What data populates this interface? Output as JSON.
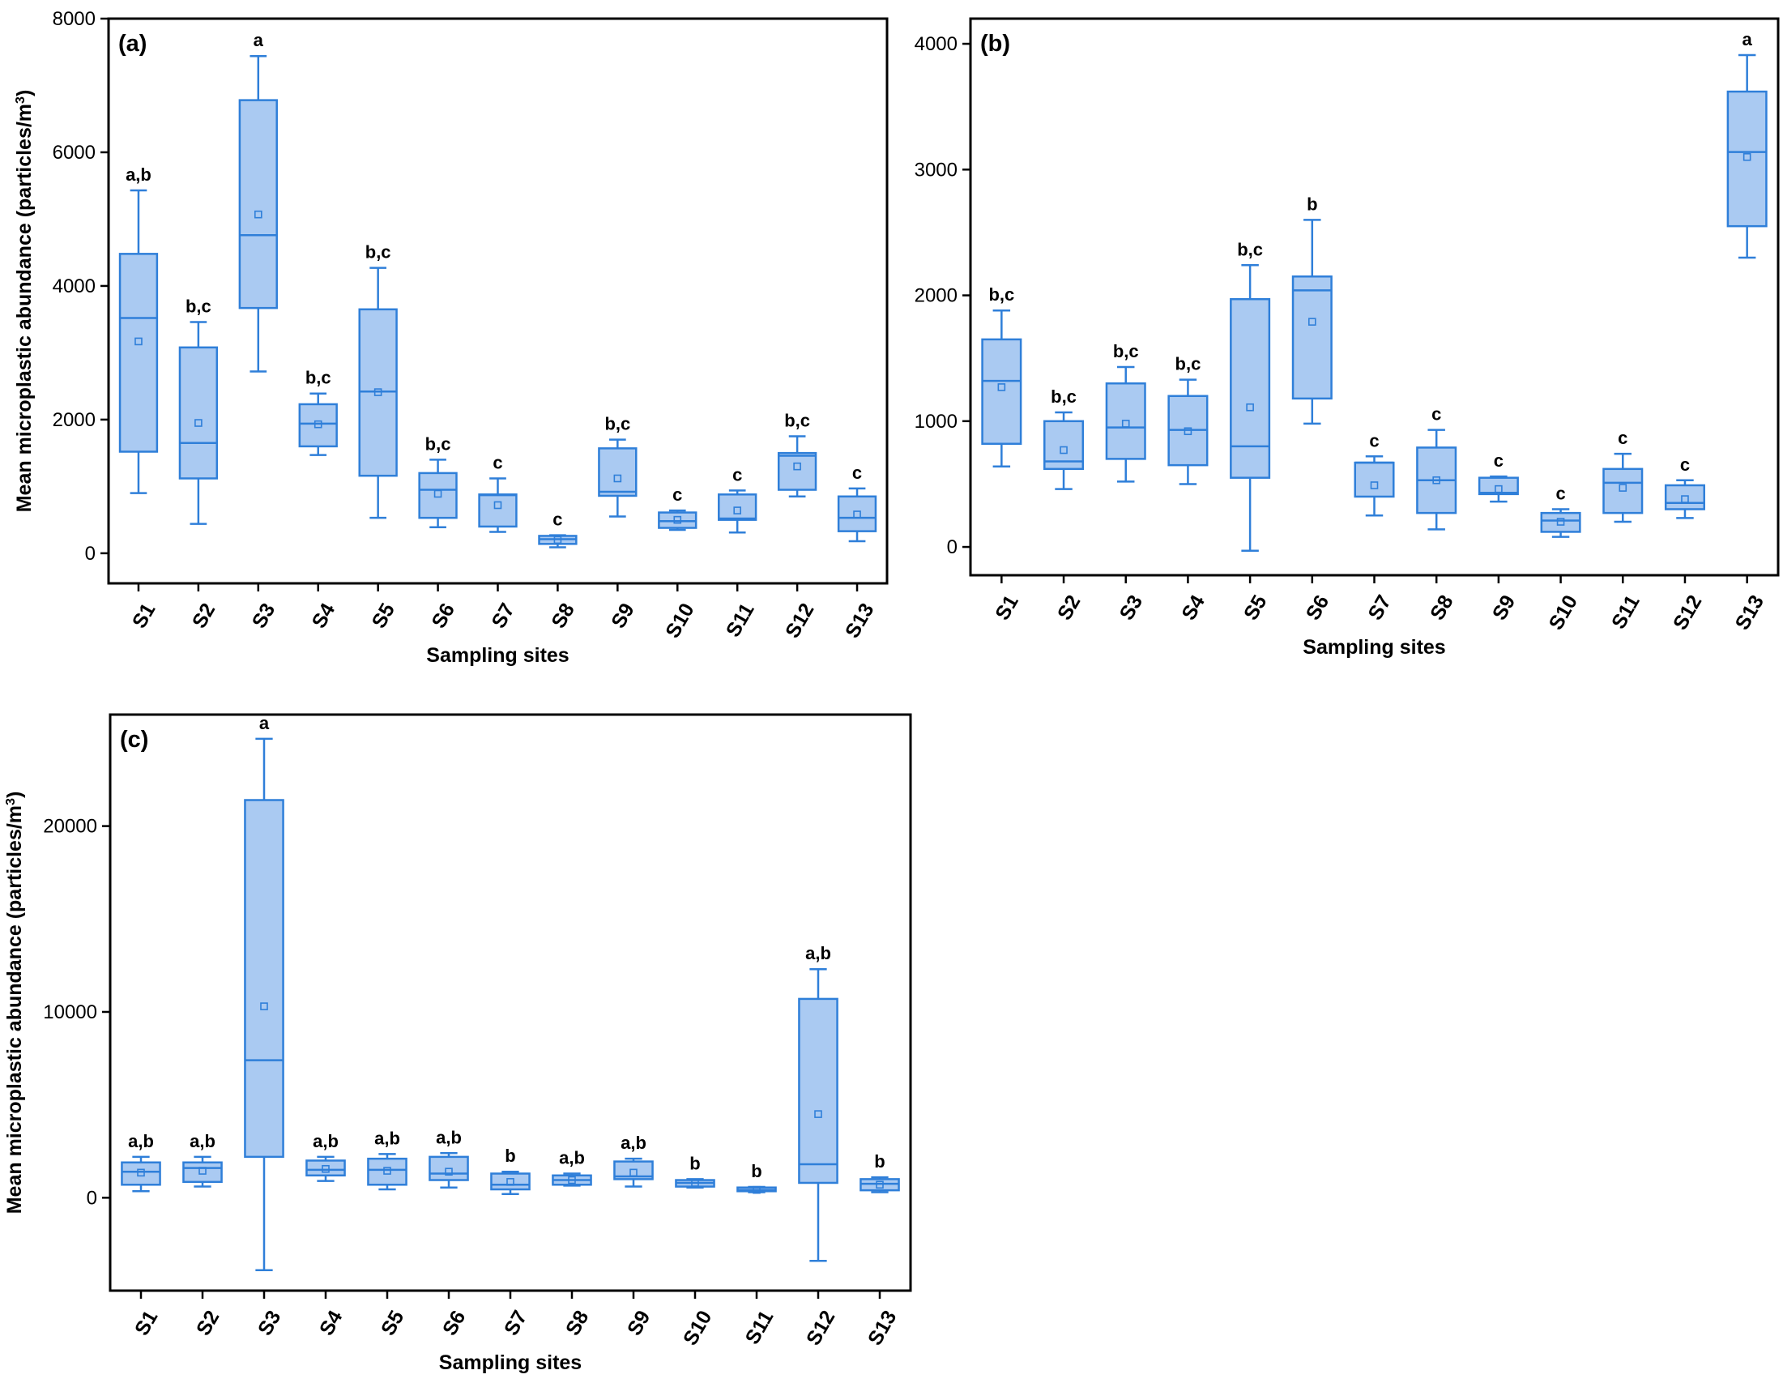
{
  "figure": {
    "box_color": "#2f7fd9",
    "box_fill": "#aacaf2",
    "axis_color": "#000000"
  },
  "chart_data": [
    {
      "type": "box",
      "panel": "(a)",
      "title": "",
      "xlabel": "Sampling sites",
      "ylabel": "Mean microplastic abundance (particles/m",
      "ylabel_sup": "3",
      "ylabel_tail": ")",
      "ylim": [
        -450,
        8000
      ],
      "yticks": [
        0,
        2000,
        4000,
        6000,
        8000
      ],
      "categories": [
        "S1",
        "S2",
        "S3",
        "S4",
        "S5",
        "S6",
        "S7",
        "S8",
        "S9",
        "S10",
        "S11",
        "S12",
        "S13"
      ],
      "boxes": [
        {
          "whisker_low": 900,
          "q1": 1520,
          "median": 3520,
          "q3": 4480,
          "whisker_high": 5430,
          "mean": 3170,
          "label": "a,b"
        },
        {
          "whisker_low": 440,
          "q1": 1120,
          "median": 1650,
          "q3": 3080,
          "whisker_high": 3460,
          "mean": 1950,
          "label": "b,c"
        },
        {
          "whisker_low": 2720,
          "q1": 3670,
          "median": 4760,
          "q3": 6780,
          "whisker_high": 7440,
          "mean": 5070,
          "label": "a"
        },
        {
          "whisker_low": 1470,
          "q1": 1600,
          "median": 1940,
          "q3": 2230,
          "whisker_high": 2390,
          "mean": 1930,
          "label": "b,c"
        },
        {
          "whisker_low": 530,
          "q1": 1160,
          "median": 2420,
          "q3": 3650,
          "whisker_high": 4270,
          "mean": 2410,
          "label": "b,c"
        },
        {
          "whisker_low": 390,
          "q1": 530,
          "median": 950,
          "q3": 1200,
          "whisker_high": 1400,
          "mean": 890,
          "label": "b,c"
        },
        {
          "whisker_low": 320,
          "q1": 400,
          "median": 870,
          "q3": 880,
          "whisker_high": 1120,
          "mean": 720,
          "label": "c"
        },
        {
          "whisker_low": 90,
          "q1": 140,
          "median": 210,
          "q3": 260,
          "whisker_high": 270,
          "mean": 200,
          "label": "c"
        },
        {
          "whisker_low": 550,
          "q1": 860,
          "median": 920,
          "q3": 1570,
          "whisker_high": 1700,
          "mean": 1120,
          "label": "b,c"
        },
        {
          "whisker_low": 350,
          "q1": 380,
          "median": 480,
          "q3": 610,
          "whisker_high": 640,
          "mean": 500,
          "label": "c"
        },
        {
          "whisker_low": 310,
          "q1": 500,
          "median": 520,
          "q3": 880,
          "whisker_high": 940,
          "mean": 640,
          "label": "c"
        },
        {
          "whisker_low": 850,
          "q1": 950,
          "median": 1460,
          "q3": 1500,
          "whisker_high": 1750,
          "mean": 1300,
          "label": "b,c"
        },
        {
          "whisker_low": 180,
          "q1": 330,
          "median": 530,
          "q3": 850,
          "whisker_high": 970,
          "mean": 580,
          "label": "c"
        }
      ]
    },
    {
      "type": "box",
      "panel": "(b)",
      "title": "",
      "xlabel": "Sampling sites",
      "ylabel": "",
      "ylabel_sup": "",
      "ylabel_tail": "",
      "ylim": [
        -225,
        4200
      ],
      "yticks": [
        0,
        1000,
        2000,
        3000,
        4000
      ],
      "categories": [
        "S1",
        "S2",
        "S3",
        "S4",
        "S5",
        "S6",
        "S7",
        "S8",
        "S9",
        "S10",
        "S11",
        "S12",
        "S13"
      ],
      "boxes": [
        {
          "whisker_low": 640,
          "q1": 820,
          "median": 1320,
          "q3": 1650,
          "whisker_high": 1880,
          "mean": 1270,
          "label": "b,c"
        },
        {
          "whisker_low": 460,
          "q1": 620,
          "median": 680,
          "q3": 1000,
          "whisker_high": 1070,
          "mean": 770,
          "label": "b,c"
        },
        {
          "whisker_low": 520,
          "q1": 700,
          "median": 950,
          "q3": 1300,
          "whisker_high": 1430,
          "mean": 980,
          "label": "b,c"
        },
        {
          "whisker_low": 500,
          "q1": 650,
          "median": 930,
          "q3": 1200,
          "whisker_high": 1330,
          "mean": 920,
          "label": "b,c"
        },
        {
          "whisker_low": -30,
          "q1": 550,
          "median": 800,
          "q3": 1970,
          "whisker_high": 2240,
          "mean": 1110,
          "label": "b,c"
        },
        {
          "whisker_low": 980,
          "q1": 1180,
          "median": 2040,
          "q3": 2150,
          "whisker_high": 2600,
          "mean": 1790,
          "label": "b"
        },
        {
          "whisker_low": 250,
          "q1": 400,
          "median": 670,
          "q3": 670,
          "whisker_high": 720,
          "mean": 490,
          "label": "c"
        },
        {
          "whisker_low": 140,
          "q1": 270,
          "median": 530,
          "q3": 790,
          "whisker_high": 930,
          "mean": 530,
          "label": "c"
        },
        {
          "whisker_low": 360,
          "q1": 420,
          "median": 430,
          "q3": 550,
          "whisker_high": 560,
          "mean": 460,
          "label": "c"
        },
        {
          "whisker_low": 80,
          "q1": 120,
          "median": 210,
          "q3": 270,
          "whisker_high": 300,
          "mean": 200,
          "label": "c"
        },
        {
          "whisker_low": 200,
          "q1": 270,
          "median": 510,
          "q3": 620,
          "whisker_high": 740,
          "mean": 470,
          "label": "c"
        },
        {
          "whisker_low": 230,
          "q1": 300,
          "median": 350,
          "q3": 490,
          "whisker_high": 530,
          "mean": 380,
          "label": "c"
        },
        {
          "whisker_low": 2300,
          "q1": 2550,
          "median": 3140,
          "q3": 3620,
          "whisker_high": 3910,
          "mean": 3100,
          "label": "a"
        }
      ]
    },
    {
      "type": "box",
      "panel": "(c)",
      "title": "",
      "xlabel": "Sampling sites",
      "ylabel": "Mean microplastic abundance (particles/m",
      "ylabel_sup": "3",
      "ylabel_tail": ")",
      "ylim": [
        -5000,
        26000
      ],
      "yticks": [
        0,
        10000,
        20000
      ],
      "categories": [
        "S1",
        "S2",
        "S3",
        "S4",
        "S5",
        "S6",
        "S7",
        "S8",
        "S9",
        "S10",
        "S11",
        "S12",
        "S13"
      ],
      "boxes": [
        {
          "whisker_low": 350,
          "q1": 700,
          "median": 1400,
          "q3": 1900,
          "whisker_high": 2200,
          "mean": 1350,
          "label": "a,b"
        },
        {
          "whisker_low": 600,
          "q1": 850,
          "median": 1600,
          "q3": 1900,
          "whisker_high": 2200,
          "mean": 1450,
          "label": "a,b"
        },
        {
          "whisker_low": -3900,
          "q1": 2200,
          "median": 7400,
          "q3": 21400,
          "whisker_high": 24700,
          "mean": 10300,
          "label": "a"
        },
        {
          "whisker_low": 900,
          "q1": 1200,
          "median": 1500,
          "q3": 2000,
          "whisker_high": 2200,
          "mean": 1550,
          "label": "a,b"
        },
        {
          "whisker_low": 450,
          "q1": 700,
          "median": 1500,
          "q3": 2100,
          "whisker_high": 2350,
          "mean": 1450,
          "label": "a,b"
        },
        {
          "whisker_low": 550,
          "q1": 950,
          "median": 1300,
          "q3": 2200,
          "whisker_high": 2400,
          "mean": 1400,
          "label": "a,b"
        },
        {
          "whisker_low": 200,
          "q1": 450,
          "median": 700,
          "q3": 1300,
          "whisker_high": 1400,
          "mean": 850,
          "label": "b"
        },
        {
          "whisker_low": 650,
          "q1": 700,
          "median": 950,
          "q3": 1200,
          "whisker_high": 1300,
          "mean": 950,
          "label": "a,b"
        },
        {
          "whisker_low": 600,
          "q1": 1000,
          "median": 1150,
          "q3": 1950,
          "whisker_high": 2100,
          "mean": 1350,
          "label": "a,b"
        },
        {
          "whisker_low": 550,
          "q1": 600,
          "median": 800,
          "q3": 950,
          "whisker_high": 1000,
          "mean": 800,
          "label": "b"
        },
        {
          "whisker_low": 300,
          "q1": 350,
          "median": 420,
          "q3": 550,
          "whisker_high": 580,
          "mean": 420,
          "label": "b"
        },
        {
          "whisker_low": -3400,
          "q1": 800,
          "median": 1800,
          "q3": 10700,
          "whisker_high": 12300,
          "mean": 4500,
          "label": "a,b"
        },
        {
          "whisker_low": 300,
          "q1": 400,
          "median": 750,
          "q3": 1000,
          "whisker_high": 1100,
          "mean": 700,
          "label": "b"
        }
      ]
    }
  ]
}
